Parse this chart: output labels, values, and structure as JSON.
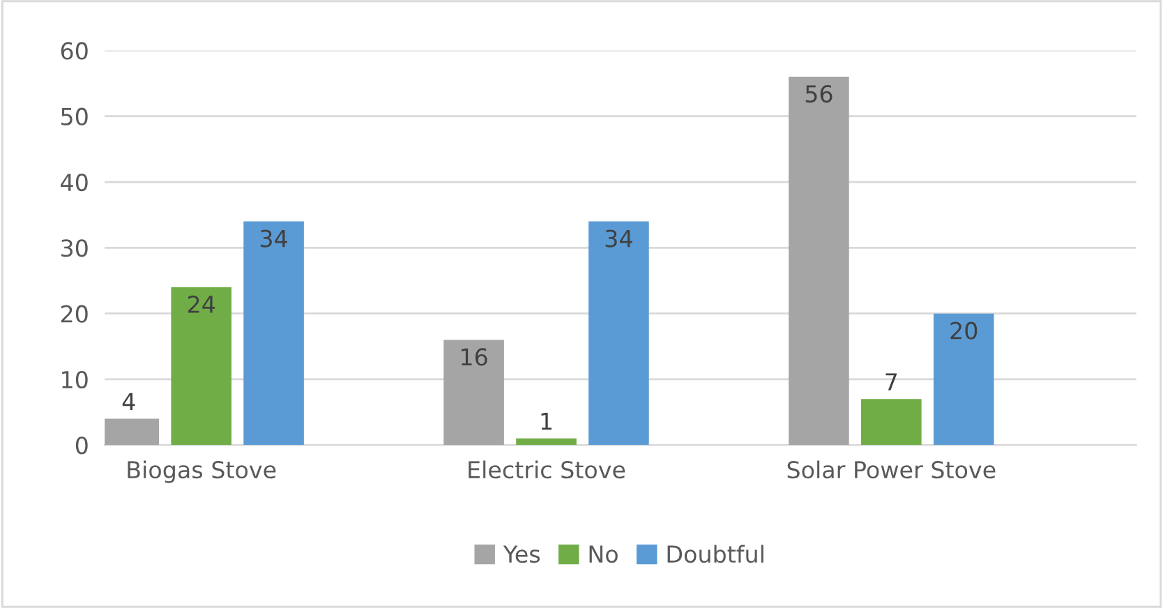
{
  "chart_data": {
    "type": "bar",
    "categories": [
      "Biogas Stove",
      "Electric Stove",
      "Solar Power Stove"
    ],
    "series": [
      {
        "name": "Yes",
        "color": "#a5a5a5",
        "values": [
          4,
          16,
          56
        ]
      },
      {
        "name": "No",
        "color": "#70ad47",
        "values": [
          24,
          1,
          7
        ]
      },
      {
        "name": "Doubtful",
        "color": "#5b9bd5",
        "values": [
          34,
          34,
          20
        ]
      }
    ],
    "ylim": [
      0,
      60
    ],
    "yticks": [
      0,
      10,
      20,
      30,
      40,
      50,
      60
    ],
    "grid": "y",
    "legend": "bottom",
    "data_labels": true
  }
}
